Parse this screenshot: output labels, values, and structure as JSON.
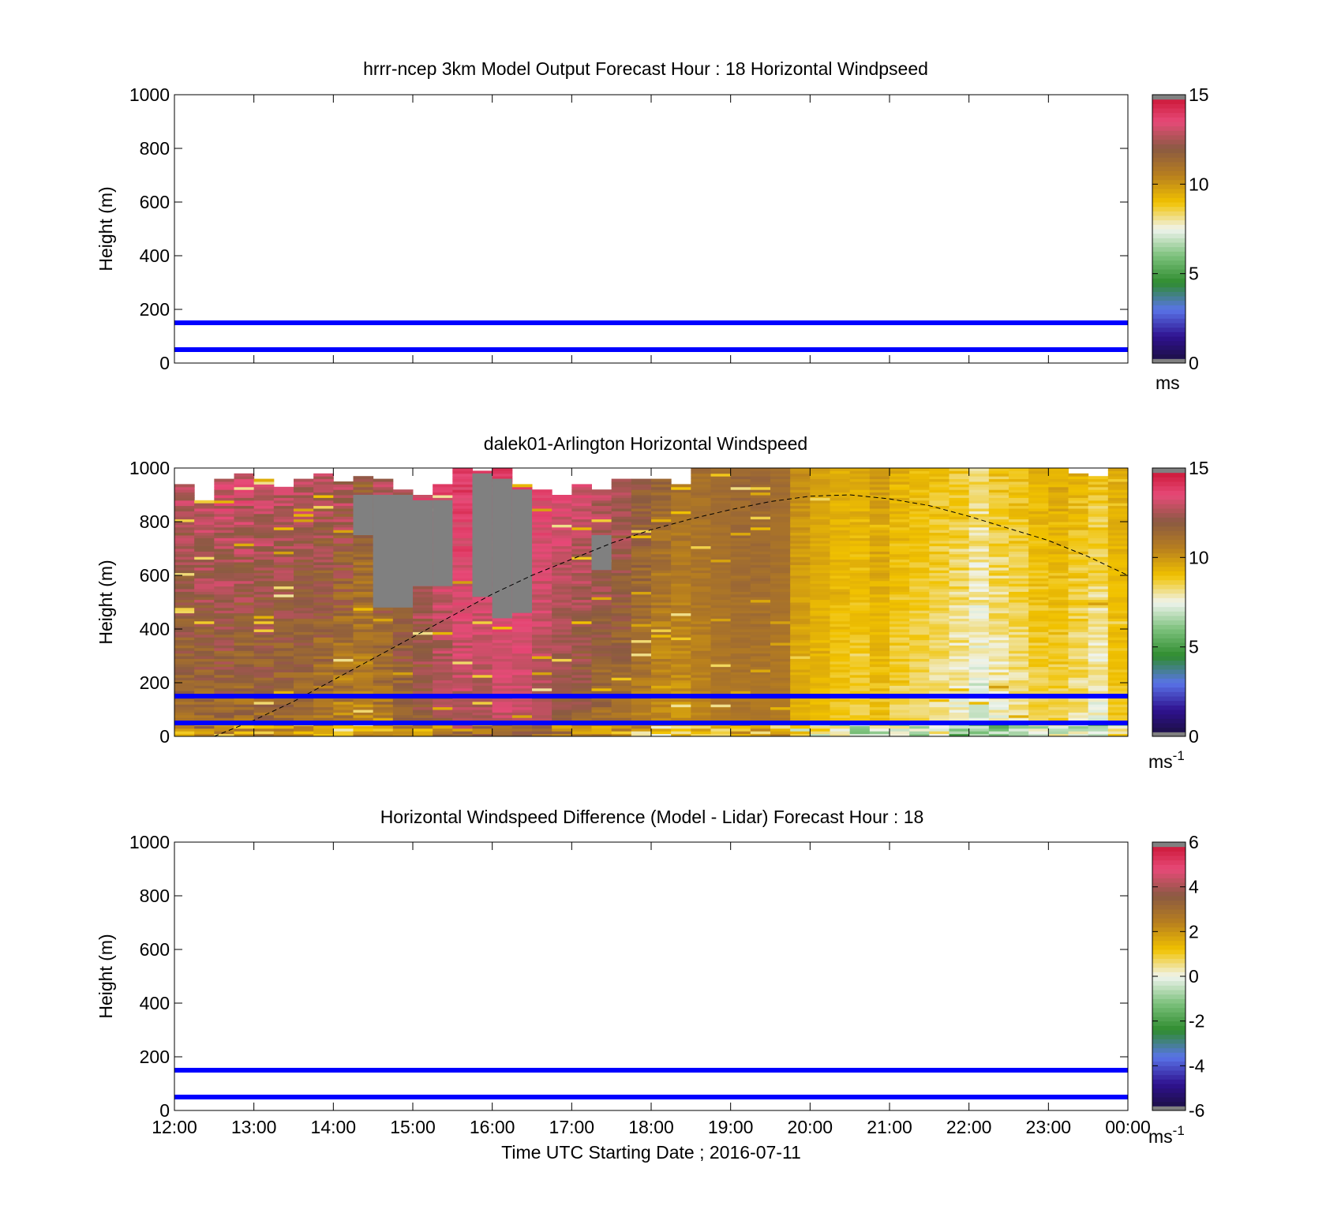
{
  "chart_data": [
    {
      "type": "heatmap",
      "title": "hrrr-ncep 3km Model Output   Forecast Hour : 18 Horizontal Windpseed",
      "ylabel": "Height (m)",
      "xlim": [
        "12:00",
        "00:00"
      ],
      "ylim": [
        0,
        1000
      ],
      "yticks": [
        0,
        200,
        400,
        600,
        800,
        1000
      ],
      "reference_lines_m": [
        50,
        150
      ],
      "reference_line_color": "#0000ff",
      "colorbar": {
        "min": 0,
        "max": 15,
        "ticks": [
          "0",
          "5",
          "10",
          "15"
        ],
        "unit": "ms"
      },
      "data": "empty"
    },
    {
      "type": "heatmap",
      "title": "dalek01-Arlington  Horizontal Windspeed",
      "ylabel": "Height (m)",
      "xlim": [
        "12:00",
        "00:00"
      ],
      "ylim": [
        0,
        1000
      ],
      "yticks": [
        0,
        200,
        400,
        600,
        800,
        1000
      ],
      "reference_lines_m": [
        50,
        150
      ],
      "reference_line_color": "#0000ff",
      "colorbar": {
        "min": 0,
        "max": 15,
        "ticks": [
          "0",
          "5",
          "10",
          "15"
        ],
        "unit": "ms",
        "unit_exponent": "-1"
      },
      "columns": [
        {
          "time": "12:00",
          "top_m": 940,
          "low": 10.5,
          "high": 13.5
        },
        {
          "time": "12:15",
          "top_m": 880,
          "low": 10.5,
          "high": 13.8
        },
        {
          "time": "12:30",
          "top_m": 960,
          "low": 10.5,
          "high": 14.0
        },
        {
          "time": "12:45",
          "top_m": 980,
          "low": 10.2,
          "high": 14.0
        },
        {
          "time": "13:00",
          "top_m": 960,
          "low": 10.5,
          "high": 13.8
        },
        {
          "time": "13:15",
          "top_m": 930,
          "low": 10.5,
          "high": 13.5
        },
        {
          "time": "13:30",
          "top_m": 960,
          "low": 10.5,
          "high": 13.5
        },
        {
          "time": "13:45",
          "top_m": 980,
          "low": 10.0,
          "high": 13.5
        },
        {
          "time": "14:00",
          "top_m": 950,
          "low": 9.5,
          "high": 13.5
        },
        {
          "time": "14:15",
          "top_m": 970,
          "low": 9.5,
          "high": 12.5
        },
        {
          "time": "14:30",
          "top_m": 960,
          "low": 10.0,
          "high": 13.5
        },
        {
          "time": "14:45",
          "top_m": 920,
          "low": 10.5,
          "high": 13.8
        },
        {
          "time": "15:00",
          "top_m": 900,
          "low": 11.0,
          "high": 14.0
        },
        {
          "time": "15:15",
          "top_m": 940,
          "low": 11.5,
          "high": 14.3
        },
        {
          "time": "15:30",
          "top_m": 1000,
          "low": 12.0,
          "high": 14.5
        },
        {
          "time": "15:45",
          "top_m": 990,
          "low": 12.0,
          "high": 14.3
        },
        {
          "time": "16:00",
          "top_m": 1000,
          "low": 12.5,
          "high": 14.5
        },
        {
          "time": "16:15",
          "top_m": 940,
          "low": 12.5,
          "high": 14.3
        },
        {
          "time": "16:30",
          "top_m": 920,
          "low": 12.0,
          "high": 14.0
        },
        {
          "time": "16:45",
          "top_m": 900,
          "low": 11.5,
          "high": 13.8
        },
        {
          "time": "17:00",
          "top_m": 940,
          "low": 11.0,
          "high": 13.8
        },
        {
          "time": "17:15",
          "top_m": 920,
          "low": 10.5,
          "high": 13.5
        },
        {
          "time": "17:30",
          "top_m": 960,
          "low": 10.5,
          "high": 13.2
        },
        {
          "time": "17:45",
          "top_m": 960,
          "low": 10.0,
          "high": 12.5
        },
        {
          "time": "18:00",
          "top_m": 960,
          "low": 9.5,
          "high": 12.0
        },
        {
          "time": "18:15",
          "top_m": 940,
          "low": 9.5,
          "high": 11.5
        },
        {
          "time": "18:30",
          "top_m": 1000,
          "low": 10.0,
          "high": 11.5
        },
        {
          "time": "18:45",
          "top_m": 1000,
          "low": 10.5,
          "high": 11.5
        },
        {
          "time": "19:00",
          "top_m": 1000,
          "low": 10.5,
          "high": 11.8
        },
        {
          "time": "19:15",
          "top_m": 1000,
          "low": 10.5,
          "high": 11.8
        },
        {
          "time": "19:30",
          "top_m": 1000,
          "low": 10.5,
          "high": 11.5
        },
        {
          "time": "19:45",
          "top_m": 1000,
          "low": 9.0,
          "high": 10.5
        },
        {
          "time": "20:00",
          "top_m": 1000,
          "low": 8.8,
          "high": 10.0
        },
        {
          "time": "20:15",
          "top_m": 1000,
          "low": 8.5,
          "high": 9.8
        },
        {
          "time": "20:30",
          "top_m": 1000,
          "low": 8.2,
          "high": 9.8
        },
        {
          "time": "20:45",
          "top_m": 1000,
          "low": 8.5,
          "high": 10.2
        },
        {
          "time": "21:00",
          "top_m": 1000,
          "low": 8.0,
          "high": 9.8
        },
        {
          "time": "21:15",
          "top_m": 1000,
          "low": 8.0,
          "high": 9.5
        },
        {
          "time": "21:30",
          "top_m": 1000,
          "low": 7.5,
          "high": 9.5
        },
        {
          "time": "21:45",
          "top_m": 1000,
          "low": 7.0,
          "high": 9.5
        },
        {
          "time": "22:00",
          "top_m": 1000,
          "low": 6.5,
          "high": 9.0
        },
        {
          "time": "22:15",
          "top_m": 1000,
          "low": 7.0,
          "high": 9.5
        },
        {
          "time": "22:30",
          "top_m": 1000,
          "low": 7.5,
          "high": 9.5
        },
        {
          "time": "22:45",
          "top_m": 1000,
          "low": 8.0,
          "high": 9.8
        },
        {
          "time": "23:00",
          "top_m": 1000,
          "low": 8.0,
          "high": 10.0
        },
        {
          "time": "23:15",
          "top_m": 980,
          "low": 7.5,
          "high": 9.8
        },
        {
          "time": "23:30",
          "top_m": 970,
          "low": 7.0,
          "high": 9.5
        },
        {
          "time": "23:45",
          "top_m": 1000,
          "low": 8.5,
          "high": 9.8
        }
      ],
      "missing_regions": [
        {
          "x_start": "14:15",
          "x_end": "14:30",
          "y_range_m": [
            750,
            900
          ]
        },
        {
          "x_start": "14:30",
          "x_end": "15:00",
          "y_range_m": [
            480,
            900
          ]
        },
        {
          "x_start": "15:00",
          "x_end": "15:15",
          "y_range_m": [
            560,
            880
          ]
        },
        {
          "x_start": "15:15",
          "x_end": "15:30",
          "y_range_m": [
            560,
            880
          ]
        },
        {
          "x_start": "15:45",
          "x_end": "16:00",
          "y_range_m": [
            520,
            980
          ]
        },
        {
          "x_start": "16:00",
          "x_end": "16:15",
          "y_range_m": [
            440,
            960
          ]
        },
        {
          "x_start": "16:15",
          "x_end": "16:30",
          "y_range_m": [
            460,
            920
          ]
        },
        {
          "x_start": "17:15",
          "x_end": "17:30",
          "y_range_m": [
            620,
            750
          ]
        }
      ],
      "dashed_curve": [
        [
          12.5,
          0
        ],
        [
          13.0,
          60
        ],
        [
          13.5,
          130
        ],
        [
          14.0,
          210
        ],
        [
          14.5,
          290
        ],
        [
          15.0,
          370
        ],
        [
          15.5,
          450
        ],
        [
          16.0,
          530
        ],
        [
          16.5,
          600
        ],
        [
          17.0,
          660
        ],
        [
          17.5,
          720
        ],
        [
          18.0,
          770
        ],
        [
          18.5,
          810
        ],
        [
          19.0,
          845
        ],
        [
          19.5,
          875
        ],
        [
          20.0,
          895
        ],
        [
          20.5,
          900
        ],
        [
          21.0,
          885
        ],
        [
          21.5,
          860
        ],
        [
          22.0,
          820
        ],
        [
          22.5,
          775
        ],
        [
          23.0,
          730
        ],
        [
          23.5,
          670
        ],
        [
          24.0,
          600
        ]
      ]
    },
    {
      "type": "heatmap",
      "title": "Horizontal Windspeed Difference (Model - Lidar) Forecast Hour : 18",
      "ylabel": "Height (m)",
      "xlabel": "Time UTC  Starting Date ; 2016-07-11",
      "xticks": [
        "12:00",
        "13:00",
        "14:00",
        "15:00",
        "16:00",
        "17:00",
        "18:00",
        "19:00",
        "20:00",
        "21:00",
        "22:00",
        "23:00",
        "00:00"
      ],
      "ylim": [
        0,
        1000
      ],
      "yticks": [
        0,
        200,
        400,
        600,
        800,
        1000
      ],
      "reference_lines_m": [
        50,
        150
      ],
      "reference_line_color": "#0000ff",
      "colorbar": {
        "min": -6,
        "max": 6,
        "ticks": [
          "-6",
          "-4",
          "-2",
          "0",
          "2",
          "4",
          "6"
        ],
        "unit": "ms",
        "unit_exponent": "-1"
      },
      "data": "empty"
    }
  ],
  "colormap": [
    "#1a0f3a",
    "#2f1290",
    "#5a74e8",
    "#2f8c2f",
    "#7cc17c",
    "#f0f4ee",
    "#f1c200",
    "#b87f1e",
    "#8a5a42",
    "#e74a78",
    "#c8102e"
  ]
}
